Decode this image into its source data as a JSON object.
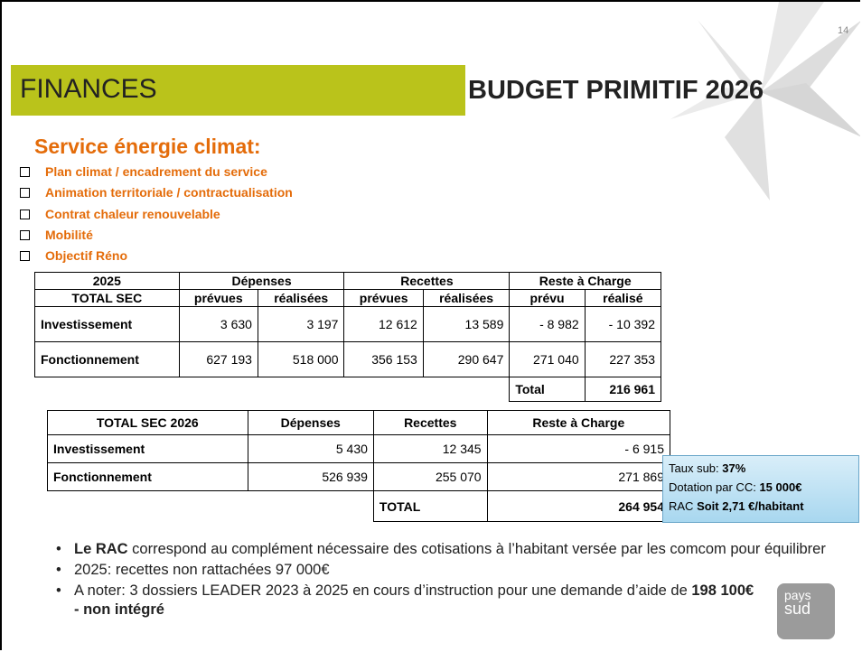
{
  "page_number": "14",
  "header": {
    "section": "FINANCES",
    "title": "BUDGET PRIMITIF 2026"
  },
  "heading": "Service énergie climat:",
  "checklist": [
    "Plan climat / encadrement du service",
    "Animation territoriale / contractualisation",
    "Contrat chaleur renouvelable",
    "Mobilité",
    "Objectif Réno"
  ],
  "table1": {
    "header1": [
      "2025",
      "Dépenses",
      "Recettes",
      "Reste à Charge"
    ],
    "header2": [
      "TOTAL SEC",
      "prévues",
      "réalisées",
      "prévues",
      "réalisées",
      "prévu",
      "réalisé"
    ],
    "rows": [
      [
        "Investissement",
        "3 630",
        "3 197",
        "12 612",
        "13 589",
        "- 8 982",
        "- 10 392"
      ],
      [
        "Fonctionnement",
        "627 193",
        "518 000",
        "356 153",
        "290 647",
        "271 040",
        "227 353"
      ]
    ],
    "total": {
      "label": "Total",
      "value": "216 961"
    }
  },
  "table2": {
    "header": [
      "TOTAL SEC 2026",
      "Dépenses",
      "Recettes",
      "Reste à Charge"
    ],
    "rows": [
      [
        "Investissement",
        "5 430",
        "12 345",
        "- 6 915"
      ],
      [
        "Fonctionnement",
        "526 939",
        "255 070",
        "271 869"
      ]
    ],
    "total": {
      "label": "TOTAL",
      "value": "264 954"
    }
  },
  "info_box": [
    [
      {
        "text": "Taux sub: ",
        "bold": false
      },
      {
        "text": "37%",
        "bold": true
      }
    ],
    [
      {
        "text": "Dotation par CC: ",
        "bold": false
      },
      {
        "text": "15 000€",
        "bold": true
      }
    ],
    [
      {
        "text": "RAC ",
        "bold": false
      },
      {
        "text": "Soit 2,71 €/habitant",
        "bold": true
      }
    ]
  ],
  "bullets": [
    [
      {
        "text": "Le RAC",
        "bold": true
      },
      {
        "text": " correspond au complément nécessaire des cotisations à l’habitant versée par les comcom pour équilibrer",
        "bold": false
      }
    ],
    [
      {
        "text": "2025: recettes non rattachées 97 000€",
        "bold": false
      }
    ],
    [
      {
        "text": "A noter: 3 dossiers LEADER 2023 à 2025 en cours d’instruction pour une demande d’aide de ",
        "bold": false
      },
      {
        "text": "198 100€ - non intégré",
        "bold": true
      }
    ]
  ],
  "logo": {
    "line1": "pays",
    "line2": "sud"
  }
}
